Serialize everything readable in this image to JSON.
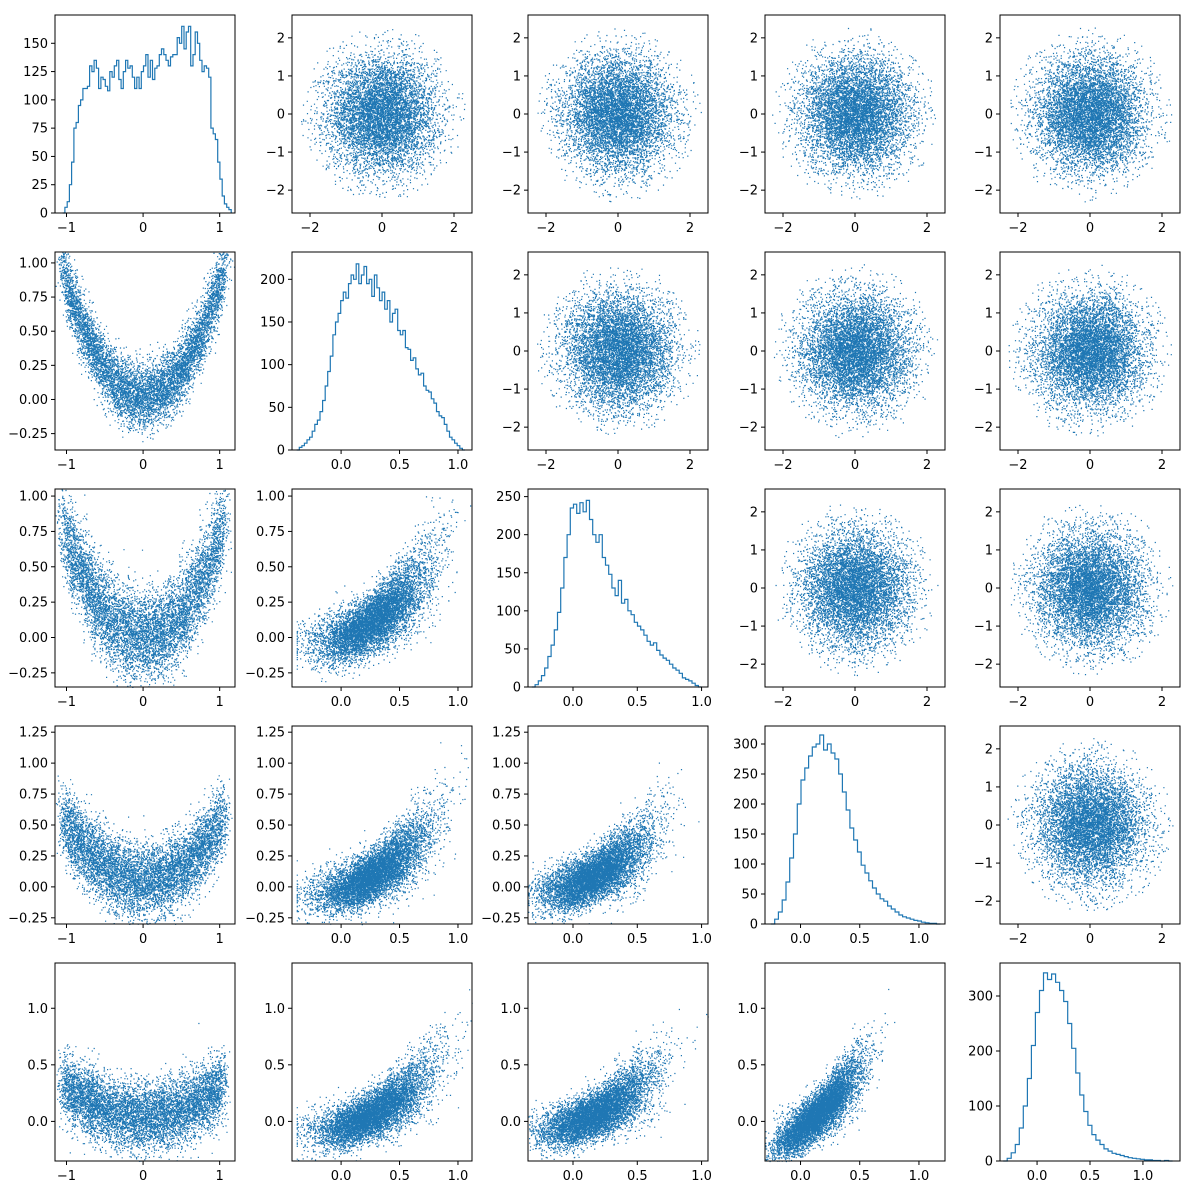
{
  "colors": {
    "series": "#1f77b4",
    "axes": "#000000",
    "background": "#ffffff"
  },
  "chart_data": {
    "type": "scatter",
    "description_role": "pair-plot matrix: histograms on diagonal, scatter below diagonal (correlated), independent normal scatter above diagonal",
    "grid": false,
    "legend": "none",
    "variables": [
      {
        "index": 0,
        "range": [
          -1.15,
          1.2
        ],
        "ticks": [
          -1,
          0,
          1
        ],
        "tick_labels": [
          "−1",
          "0",
          "1"
        ]
      },
      {
        "index": 1,
        "range": [
          -0.42,
          1.12
        ],
        "ticks": [
          0,
          0.5,
          1
        ],
        "tick_labels": [
          "0.0",
          "0.5",
          "1.0"
        ]
      },
      {
        "index": 2,
        "range": [
          -0.35,
          1.05
        ],
        "ticks": [
          0,
          0.5,
          1
        ],
        "tick_labels": [
          "0.0",
          "0.5",
          "1.0"
        ]
      },
      {
        "index": 3,
        "range": [
          -0.3,
          1.22
        ],
        "ticks": [
          0,
          0.5,
          1
        ],
        "tick_labels": [
          "0.0",
          "0.5",
          "1.0"
        ]
      },
      {
        "index": 4,
        "range": [
          -0.35,
          1.35
        ],
        "ticks": [
          0,
          0.5,
          1
        ],
        "tick_labels": [
          "0.0",
          "0.5",
          "1.0"
        ]
      }
    ],
    "upper_triangle": {
      "type": "scatter",
      "xlim": [
        -2.5,
        2.5
      ],
      "ylim": [
        -2.6,
        2.6
      ],
      "xticks": [
        -2,
        0,
        2
      ],
      "xtick_labels": [
        "−2",
        "0",
        "2"
      ],
      "yticks": [
        -2,
        -1,
        0,
        1,
        2
      ],
      "ytick_labels": [
        "−2",
        "−1",
        "0",
        "1",
        "2"
      ]
    },
    "lower_ylim": [
      null,
      {
        "range": [
          -0.37,
          1.08
        ],
        "ticks": [
          -0.25,
          0,
          0.25,
          0.5,
          0.75,
          1.0
        ],
        "labels": [
          "−0.25",
          "0.00",
          "0.25",
          "0.50",
          "0.75",
          "1.00"
        ]
      },
      {
        "range": [
          -0.35,
          1.05
        ],
        "ticks": [
          -0.25,
          0,
          0.25,
          0.5,
          0.75,
          1.0
        ],
        "labels": [
          "−0.25",
          "0.00",
          "0.25",
          "0.50",
          "0.75",
          "1.00"
        ]
      },
      {
        "range": [
          -0.3,
          1.3
        ],
        "ticks": [
          -0.25,
          0,
          0.25,
          0.5,
          0.75,
          1.0,
          1.25
        ],
        "labels": [
          "−0.25",
          "0.00",
          "0.25",
          "0.50",
          "0.75",
          "1.00",
          "1.25"
        ]
      },
      {
        "range": [
          -0.35,
          1.4
        ],
        "ticks": [
          0,
          0.5,
          1.0
        ],
        "labels": [
          "0.0",
          "0.5",
          "1.0"
        ]
      }
    ],
    "histograms": [
      {
        "variable": 0,
        "type": "histogram",
        "ylim": [
          0,
          175
        ],
        "yticks": [
          0,
          25,
          50,
          75,
          100,
          125,
          150
        ],
        "ytick_labels": [
          "0",
          "25",
          "50",
          "75",
          "100",
          "125",
          "150"
        ],
        "bin_edges_range": [
          -1.05,
          1.15
        ],
        "counts": [
          0,
          5,
          10,
          25,
          45,
          75,
          80,
          95,
          100,
          110,
          110,
          112,
          130,
          125,
          135,
          128,
          110,
          120,
          118,
          112,
          108,
          125,
          120,
          130,
          135,
          118,
          110,
          125,
          135,
          128,
          130,
          120,
          110,
          120,
          110,
          125,
          130,
          140,
          120,
          135,
          118,
          128,
          130,
          140,
          145,
          140,
          135,
          130,
          138,
          140,
          140,
          155,
          150,
          165,
          145,
          160,
          165,
          130,
          140,
          160,
          150,
          135,
          125,
          130,
          128,
          120,
          75,
          70,
          65,
          45,
          30,
          15,
          8,
          5,
          3
        ]
      },
      {
        "variable": 1,
        "type": "histogram",
        "ylim": [
          0,
          232
        ],
        "yticks": [
          0,
          50,
          100,
          150,
          200
        ],
        "ytick_labels": [
          "0",
          "50",
          "100",
          "150",
          "200"
        ],
        "bin_edges_range": [
          -0.38,
          1.06
        ],
        "counts": [
          0,
          3,
          5,
          8,
          12,
          15,
          22,
          30,
          35,
          45,
          58,
          75,
          92,
          110,
          135,
          150,
          160,
          175,
          185,
          178,
          195,
          205,
          200,
          218,
          195,
          205,
          215,
          195,
          200,
          180,
          205,
          190,
          175,
          185,
          165,
          175,
          150,
          160,
          165,
          140,
          135,
          140,
          120,
          118,
          105,
          108,
          95,
          88,
          90,
          75,
          70,
          68,
          60,
          55,
          45,
          40,
          38,
          30,
          22,
          15,
          12,
          8,
          5,
          2,
          0
        ]
      },
      {
        "variable": 2,
        "type": "histogram",
        "ylim": [
          0,
          260
        ],
        "yticks": [
          0,
          50,
          100,
          150,
          200,
          250
        ],
        "ytick_labels": [
          "0",
          "50",
          "100",
          "150",
          "200",
          "250"
        ],
        "bin_edges_range": [
          -0.32,
          1.0
        ],
        "counts": [
          0,
          3,
          8,
          15,
          25,
          40,
          55,
          75,
          98,
          130,
          170,
          200,
          235,
          240,
          228,
          242,
          230,
          245,
          220,
          200,
          190,
          200,
          170,
          160,
          148,
          130,
          120,
          140,
          110,
          115,
          100,
          95,
          85,
          80,
          75,
          68,
          60,
          55,
          58,
          48,
          42,
          38,
          35,
          30,
          25,
          22,
          18,
          12,
          10,
          8,
          5,
          2,
          0
        ]
      },
      {
        "variable": 3,
        "type": "histogram",
        "ylim": [
          0,
          330
        ],
        "yticks": [
          0,
          50,
          100,
          150,
          200,
          250,
          300
        ],
        "ytick_labels": [
          "0",
          "50",
          "100",
          "150",
          "200",
          "250",
          "300"
        ],
        "bin_edges_range": [
          -0.25,
          1.18
        ],
        "counts": [
          0,
          8,
          20,
          40,
          70,
          110,
          150,
          200,
          240,
          260,
          280,
          295,
          300,
          315,
          290,
          300,
          285,
          275,
          250,
          220,
          190,
          160,
          140,
          120,
          98,
          85,
          72,
          60,
          50,
          42,
          38,
          30,
          25,
          20,
          15,
          12,
          10,
          8,
          6,
          5,
          3,
          2,
          1,
          1,
          0
        ]
      },
      {
        "variable": 4,
        "type": "histogram",
        "ylim": [
          0,
          360
        ],
        "yticks": [
          0,
          100,
          200,
          300
        ],
        "ytick_labels": [
          "0",
          "100",
          "200",
          "300"
        ],
        "bin_edges_range": [
          -0.32,
          1.28
        ],
        "counts": [
          0,
          5,
          15,
          30,
          60,
          100,
          150,
          210,
          270,
          310,
          342,
          330,
          340,
          325,
          310,
          290,
          250,
          205,
          160,
          120,
          90,
          65,
          48,
          38,
          30,
          22,
          18,
          14,
          12,
          10,
          8,
          6,
          5,
          4,
          3,
          2,
          2,
          1,
          1,
          0,
          1,
          0
        ]
      }
    ],
    "scatter_relations": [
      {
        "row": 1,
        "col": 0,
        "form": "quadratic",
        "a": 0.82,
        "b": 0.02,
        "noise": 0.12
      },
      {
        "row": 2,
        "col": 0,
        "form": "quadratic",
        "a": 0.7,
        "b": 0.0,
        "noise": 0.16
      },
      {
        "row": 2,
        "col": 1,
        "form": "linear_curve",
        "note": "increasing"
      },
      {
        "row": 3,
        "col": 0,
        "form": "quadratic",
        "a": 0.45,
        "b": 0.05,
        "noise": 0.15
      },
      {
        "row": 3,
        "col": 1,
        "form": "linear_curve",
        "note": "increasing"
      },
      {
        "row": 3,
        "col": 2,
        "form": "linear_curve",
        "note": "increasing"
      },
      {
        "row": 4,
        "col": 0,
        "form": "quadratic",
        "a": 0.25,
        "b": 0.05,
        "noise": 0.15
      },
      {
        "row": 4,
        "col": 1,
        "form": "linear_curve",
        "note": "increasing"
      },
      {
        "row": 4,
        "col": 2,
        "form": "linear_curve",
        "note": "increasing"
      },
      {
        "row": 4,
        "col": 3,
        "form": "linear_curve",
        "note": "increasing"
      }
    ]
  }
}
